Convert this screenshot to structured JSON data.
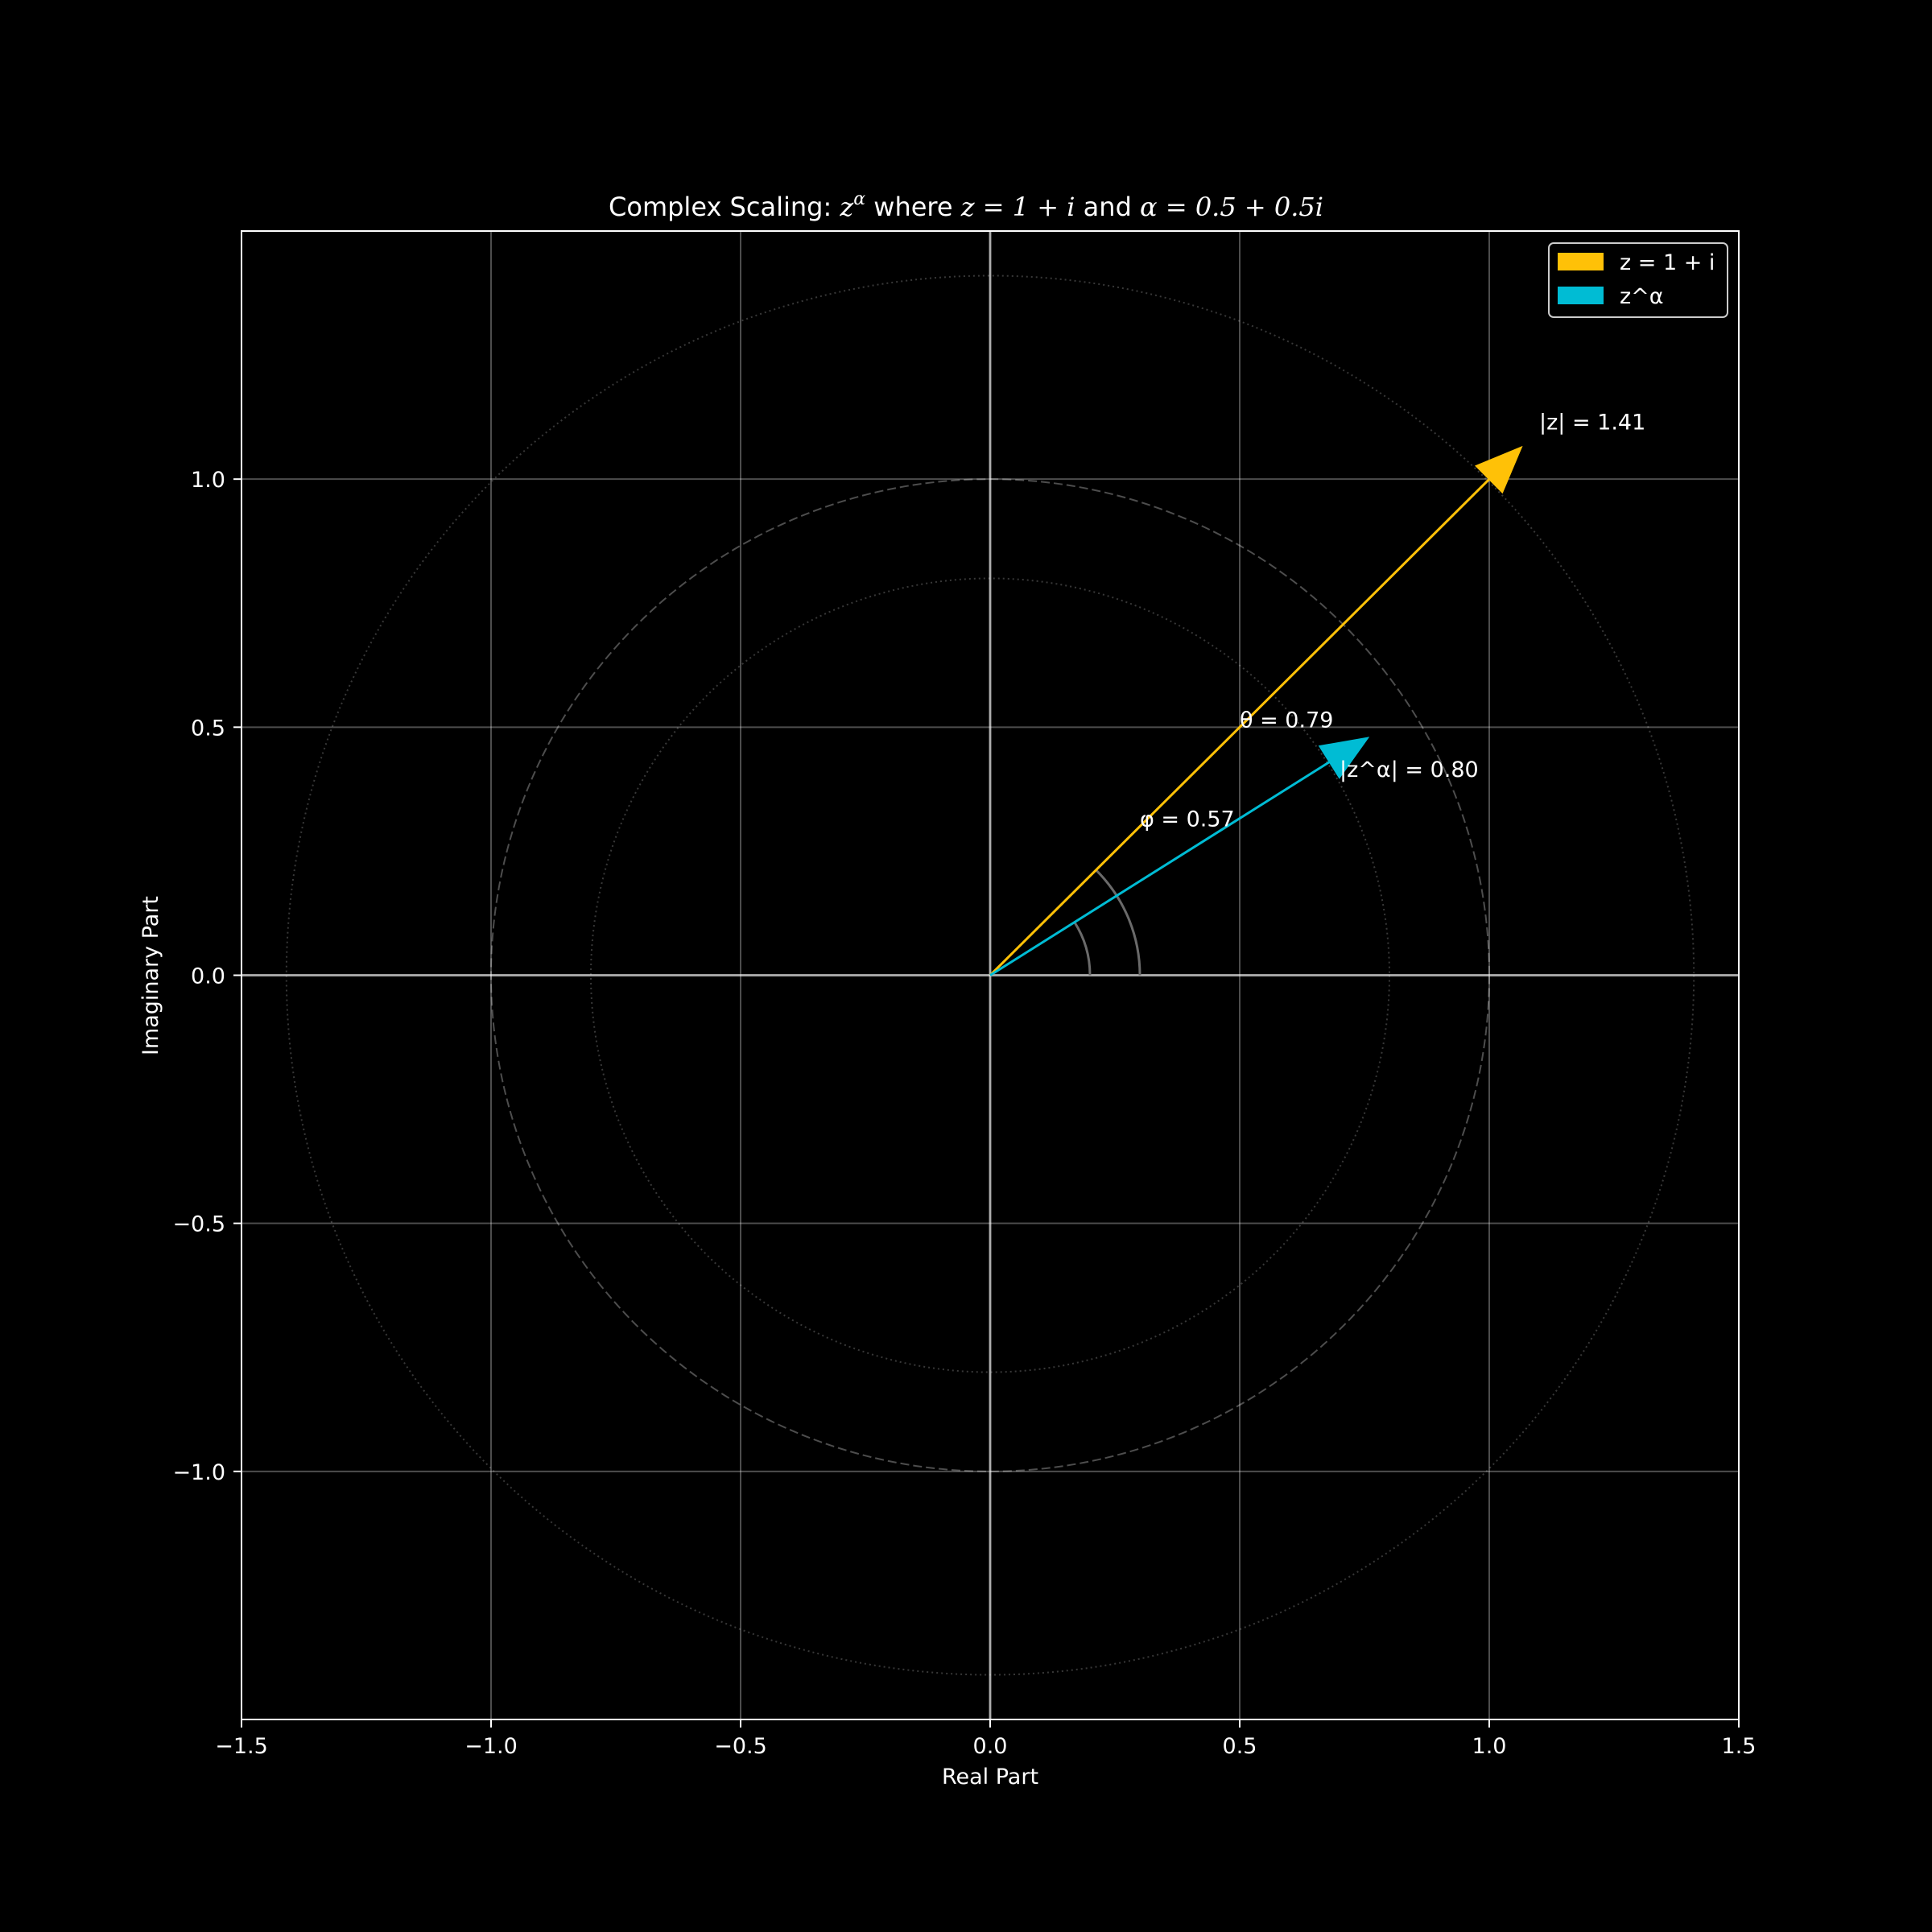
{
  "chart_data": {
    "type": "line",
    "title": {
      "prefix": "Complex Scaling: ",
      "base": "z",
      "superscript": "α",
      "mid1": " where ",
      "eq1": "z = 1 + i",
      "mid2": " and ",
      "eq2": "α = 0.5 + 0.5i"
    },
    "xlabel": "Real Part",
    "ylabel": "Imaginary Part",
    "xlim": [
      -1.5,
      1.5
    ],
    "ylim": [
      -1.5,
      1.5
    ],
    "grid": true,
    "legend_position": "top-right",
    "xticks": [
      -1.5,
      -1.0,
      -0.5,
      0.0,
      0.5,
      1.0,
      1.5
    ],
    "yticks": [
      -1.0,
      -0.5,
      0.0,
      0.5,
      1.0
    ],
    "xtick_labels": [
      "−1.5",
      "−1.0",
      "−0.5",
      "0.0",
      "0.5",
      "1.0",
      "1.5"
    ],
    "ytick_labels": [
      "−1.0",
      "−0.5",
      "0.0",
      "0.5",
      "1.0"
    ],
    "reference_circles": [
      {
        "radius": 1.0,
        "style": "dashed"
      },
      {
        "radius": 0.8,
        "style": "dotted"
      },
      {
        "radius": 1.41,
        "style": "dotted"
      }
    ],
    "series": [
      {
        "name": "z = 1 + i",
        "color": "#FFC107",
        "from": [
          0,
          0
        ],
        "to": [
          1.0,
          1.0
        ],
        "angle": 0.79,
        "magnitude": 1.41
      },
      {
        "name": "z^α",
        "color": "#00BCD4",
        "from": [
          0,
          0
        ],
        "to": [
          0.68,
          0.43
        ],
        "angle": 0.57,
        "magnitude": 0.8
      }
    ],
    "angle_arcs": [
      {
        "radius": 0.2,
        "from_angle": 0,
        "to_angle": 0.57
      },
      {
        "radius": 0.3,
        "from_angle": 0,
        "to_angle": 0.79
      }
    ],
    "annotations": [
      {
        "text": "|z| = 1.41",
        "x": 1.1,
        "y": 1.1
      },
      {
        "text": "θ = 0.79",
        "x": 0.5,
        "y": 0.5
      },
      {
        "text": "|z^α| = 0.80",
        "x": 0.7,
        "y": 0.4
      },
      {
        "text": "φ = 0.57",
        "x": 0.3,
        "y": 0.3
      }
    ]
  }
}
